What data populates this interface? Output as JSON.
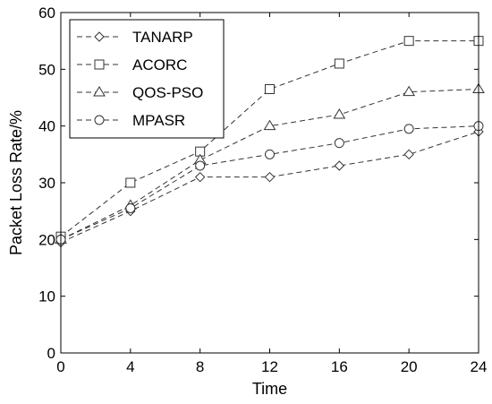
{
  "chart_data": {
    "type": "line",
    "title": "",
    "xlabel": "Time",
    "ylabel": "Packet Loss Rate/%",
    "x": [
      0,
      4,
      8,
      12,
      16,
      20,
      24
    ],
    "xlim": [
      0,
      24
    ],
    "ylim": [
      0,
      60
    ],
    "xticks": [
      "0",
      "4",
      "8",
      "12",
      "16",
      "20",
      "24"
    ],
    "yticks": [
      "0",
      "10",
      "20",
      "30",
      "40",
      "50",
      "60"
    ],
    "grid": false,
    "legend_position": "top-left",
    "series": [
      {
        "name": "TANARP",
        "marker": "diamond",
        "color": "#333333",
        "values": [
          19.5,
          25,
          31,
          31,
          33,
          35,
          39
        ]
      },
      {
        "name": "ACORC",
        "marker": "square",
        "color": "#333333",
        "values": [
          20.5,
          30,
          35.5,
          46.5,
          51,
          55,
          55
        ]
      },
      {
        "name": "QOS-PSO",
        "marker": "triangle",
        "color": "#333333",
        "values": [
          20,
          26,
          34,
          40,
          42,
          46,
          46.5
        ]
      },
      {
        "name": "MPASR",
        "marker": "circle",
        "color": "#333333",
        "values": [
          20,
          25.5,
          33,
          35,
          37,
          39.5,
          40
        ]
      }
    ]
  }
}
